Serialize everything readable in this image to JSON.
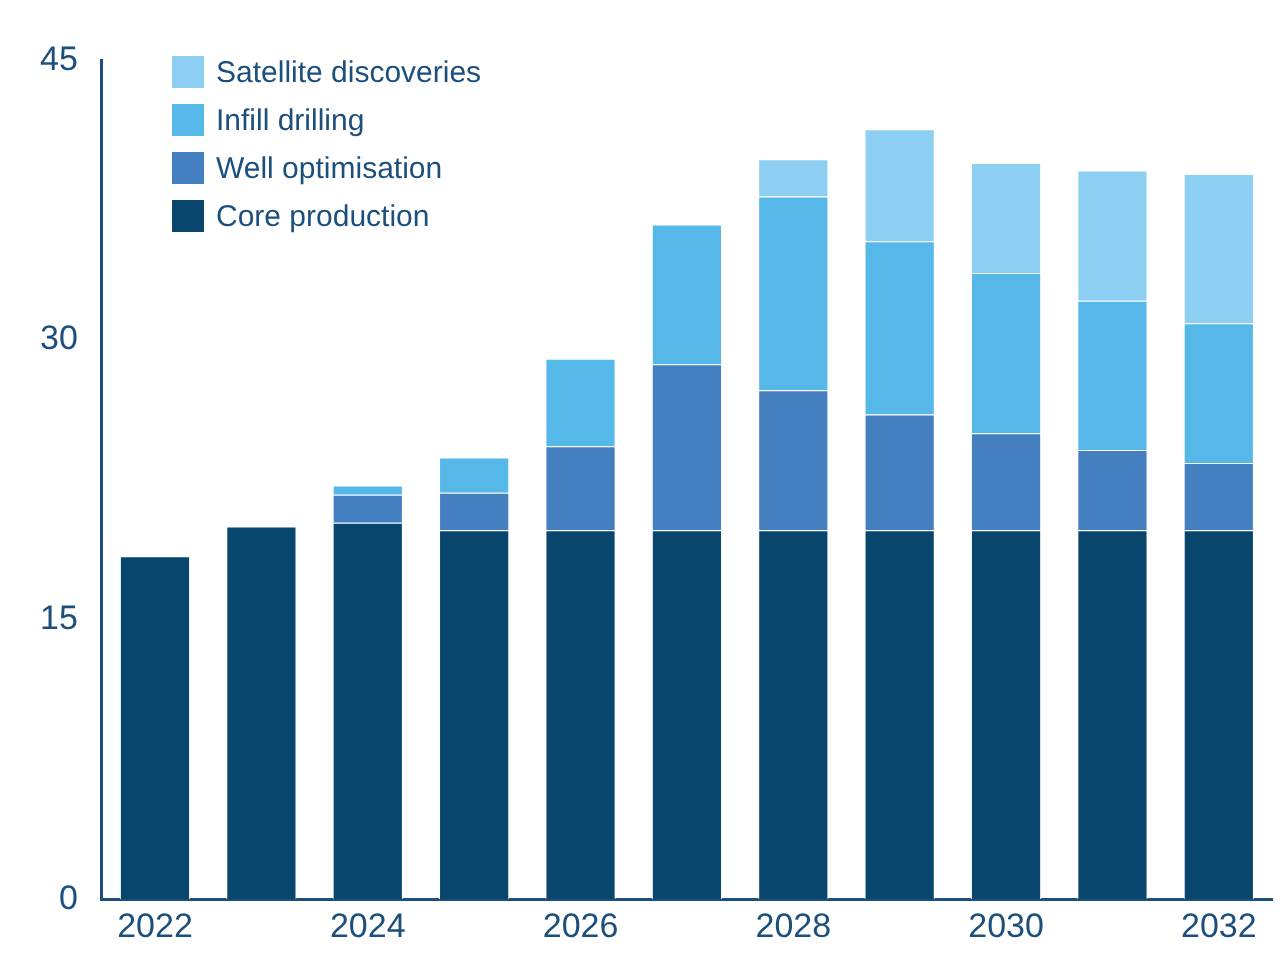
{
  "chart_data": {
    "type": "bar",
    "stacked": true,
    "categories": [
      "2022",
      null,
      "2024",
      null,
      "2026",
      null,
      "2028",
      null,
      "2030",
      null,
      "2032"
    ],
    "series": [
      {
        "name": "Core production",
        "color": "#08466e",
        "values": [
          18.4,
          20.0,
          20.2,
          19.8,
          19.8,
          19.8,
          19.8,
          19.8,
          19.8,
          19.8,
          19.8
        ]
      },
      {
        "name": "Well optimisation",
        "color": "#447fc0",
        "values": [
          null,
          null,
          1.5,
          2.0,
          4.5,
          8.9,
          7.5,
          6.2,
          5.2,
          4.3,
          3.6
        ]
      },
      {
        "name": "Infill drilling",
        "color": "#55b8e8",
        "values": [
          null,
          null,
          0.5,
          1.9,
          4.7,
          7.5,
          10.4,
          9.3,
          8.6,
          8.0,
          7.5
        ]
      },
      {
        "name": "Satellite discoveries",
        "color": "#8ccff2",
        "values": [
          null,
          null,
          null,
          null,
          null,
          null,
          2.0,
          6.0,
          5.9,
          7.0,
          8.0
        ]
      }
    ],
    "ylim": [
      0,
      45
    ],
    "yticks": [
      0,
      15,
      30,
      45
    ],
    "grid": false,
    "legend": "top left"
  }
}
